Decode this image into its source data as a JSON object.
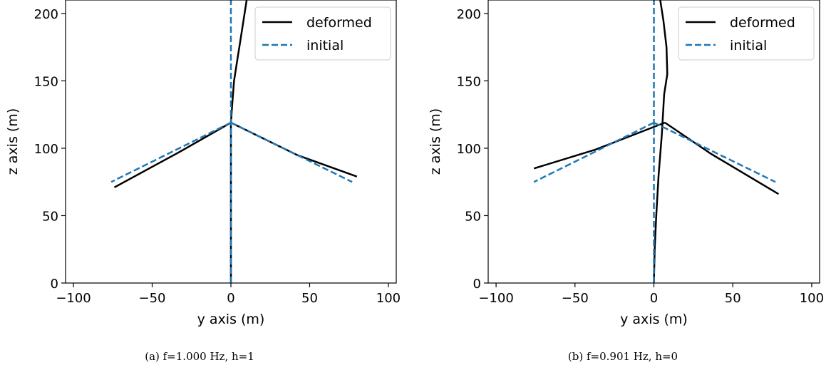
{
  "chart_data": [
    {
      "type": "line",
      "caption": "(a) f=1.000 Hz, h=1",
      "xlabel": "y axis (m)",
      "ylabel": "z axis (m)",
      "xlim": [
        -105,
        105
      ],
      "ylim": [
        0,
        210
      ],
      "xticks": [
        -100,
        -50,
        0,
        50,
        100
      ],
      "xtick_labels": [
        "−100",
        "−50",
        "0",
        "50",
        "100"
      ],
      "yticks": [
        0,
        50,
        100,
        150,
        200
      ],
      "ytick_labels": [
        "0",
        "50",
        "100",
        "150",
        "200"
      ],
      "legend": {
        "position": "top-right",
        "entries": [
          "deformed",
          "initial"
        ]
      },
      "series": [
        {
          "name": "deformed",
          "color": "#000000",
          "style": "solid",
          "segments": [
            [
              [
                0,
                0
              ],
              [
                0,
                40
              ],
              [
                0,
                80
              ],
              [
                0,
                119
              ],
              [
                1,
                135
              ],
              [
                2,
                150
              ],
              [
                4,
                165
              ],
              [
                6,
                180
              ],
              [
                8,
                195
              ],
              [
                10,
                210
              ]
            ],
            [
              [
                0,
                119
              ],
              [
                -33,
                97
              ],
              [
                -74,
                71
              ]
            ],
            [
              [
                0,
                119
              ],
              [
                42,
                95
              ],
              [
                80,
                79
              ]
            ]
          ]
        },
        {
          "name": "initial",
          "color": "#1f77b4",
          "style": "dashed",
          "segments": [
            [
              [
                0,
                0
              ],
              [
                0,
                210
              ]
            ],
            [
              [
                0,
                119
              ],
              [
                -76,
                75
              ]
            ],
            [
              [
                0,
                119
              ],
              [
                77,
                75
              ]
            ]
          ]
        }
      ]
    },
    {
      "type": "line",
      "caption": "(b) f=0.901 Hz, h=0",
      "xlabel": "y axis (m)",
      "ylabel": "z axis (m)",
      "xlim": [
        -105,
        105
      ],
      "ylim": [
        0,
        210
      ],
      "xticks": [
        -100,
        -50,
        0,
        50,
        100
      ],
      "xtick_labels": [
        "−100",
        "−50",
        "0",
        "50",
        "100"
      ],
      "yticks": [
        0,
        50,
        100,
        150,
        200
      ],
      "ytick_labels": [
        "0",
        "50",
        "100",
        "150",
        "200"
      ],
      "legend": {
        "position": "top-right",
        "entries": [
          "deformed",
          "initial"
        ]
      },
      "series": [
        {
          "name": "deformed",
          "color": "#000000",
          "style": "solid",
          "segments": [
            [
              [
                0,
                0
              ],
              [
                0.5,
                25
              ],
              [
                1.5,
                50
              ],
              [
                3,
                80
              ],
              [
                5,
                110
              ],
              [
                6.5,
                140
              ],
              [
                8.5,
                155
              ],
              [
                8,
                175
              ],
              [
                6,
                195
              ],
              [
                4,
                210
              ]
            ],
            [
              [
                7,
                119
              ],
              [
                36,
                96
              ],
              [
                79,
                66
              ]
            ],
            [
              [
                7,
                119
              ],
              [
                -37,
                99
              ],
              [
                -76,
                85
              ]
            ]
          ]
        },
        {
          "name": "initial",
          "color": "#1f77b4",
          "style": "dashed",
          "segments": [
            [
              [
                0,
                0
              ],
              [
                0,
                210
              ]
            ],
            [
              [
                0,
                119
              ],
              [
                -76,
                75
              ]
            ],
            [
              [
                0,
                119
              ],
              [
                77,
                75
              ]
            ]
          ]
        }
      ]
    }
  ]
}
